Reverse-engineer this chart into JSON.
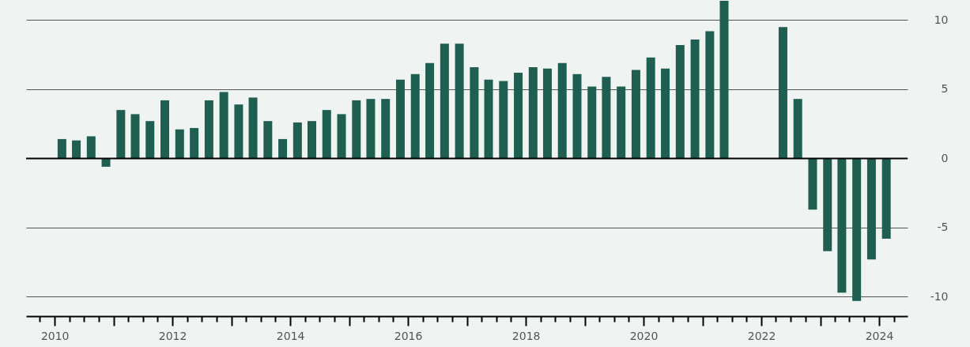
{
  "chart_data": {
    "type": "bar",
    "x": [
      "2010-02-15",
      "2010-05-15",
      "2010-08-15",
      "2010-11-15",
      "2011-02-15",
      "2011-05-15",
      "2011-08-15",
      "2011-11-15",
      "2012-02-15",
      "2012-05-15",
      "2012-08-15",
      "2012-11-15",
      "2013-02-15",
      "2013-05-15",
      "2013-08-15",
      "2013-11-15",
      "2014-02-15",
      "2014-05-15",
      "2014-08-15",
      "2014-11-15",
      "2015-02-15",
      "2015-05-15",
      "2015-08-15",
      "2015-11-15",
      "2016-02-15",
      "2016-05-15",
      "2016-08-15",
      "2016-11-15",
      "2017-02-15",
      "2017-05-15",
      "2017-08-15",
      "2017-11-15",
      "2018-02-15",
      "2018-05-15",
      "2018-08-15",
      "2018-11-15",
      "2019-02-15",
      "2019-05-15",
      "2019-08-15",
      "2019-11-15",
      "2020-02-15",
      "2020-05-15",
      "2020-08-15",
      "2020-11-15",
      "2021-02-15",
      "2021-05-15",
      "2021-08-15",
      "2021-11-15",
      "2022-02-15",
      "2022-05-15",
      "2022-08-15",
      "2022-11-15",
      "2023-02-15",
      "2023-05-15",
      "2023-08-15",
      "2023-11-15",
      "2024-02-15"
    ],
    "values": [
      1.4,
      1.3,
      1.6,
      -0.6,
      3.5,
      3.2,
      2.7,
      4.2,
      2.1,
      2.2,
      4.2,
      4.8,
      3.9,
      4.4,
      2.7,
      1.4,
      2.6,
      2.7,
      3.5,
      3.2,
      4.2,
      4.3,
      4.3,
      5.7,
      6.1,
      6.9,
      8.3,
      8.3,
      6.6,
      5.7,
      5.6,
      6.2,
      6.6,
      6.5,
      6.9,
      6.1,
      5.2,
      5.9,
      5.2,
      6.4,
      7.3,
      6.5,
      8.2,
      8.6,
      9.2,
      11.4,
      null,
      null,
      null,
      9.5,
      4.3,
      -3.7,
      -6.7,
      -9.7,
      -10.3,
      -7.3,
      -5.8
    ],
    "color": "#1f5f52",
    "xlim": [
      "2009-08",
      "2024-06"
    ],
    "xticks": [
      {
        "value": "2009-10",
        "label": null
      },
      {
        "value": "2010",
        "label": "2010"
      },
      {
        "value": "2010-04",
        "label": null
      },
      {
        "value": "2010-07",
        "label": null
      },
      {
        "value": "2010-10",
        "label": null
      },
      {
        "value": "2011",
        "label": null
      },
      {
        "value": "2011-04",
        "label": null
      },
      {
        "value": "2011-07",
        "label": null
      },
      {
        "value": "2011-10",
        "label": null
      },
      {
        "value": "2012",
        "label": "2012"
      },
      {
        "value": "2012-04",
        "label": null
      },
      {
        "value": "2012-07",
        "label": null
      },
      {
        "value": "2012-10",
        "label": null
      },
      {
        "value": "2013",
        "label": null
      },
      {
        "value": "2013-04",
        "label": null
      },
      {
        "value": "2013-07",
        "label": null
      },
      {
        "value": "2013-10",
        "label": null
      },
      {
        "value": "2014",
        "label": "2014"
      },
      {
        "value": "2014-04",
        "label": null
      },
      {
        "value": "2014-07",
        "label": null
      },
      {
        "value": "2014-10",
        "label": null
      },
      {
        "value": "2015",
        "label": null
      },
      {
        "value": "2015-04",
        "label": null
      },
      {
        "value": "2015-07",
        "label": null
      },
      {
        "value": "2015-10",
        "label": null
      },
      {
        "value": "2016",
        "label": "2016"
      },
      {
        "value": "2016-04",
        "label": null
      },
      {
        "value": "2016-07",
        "label": null
      },
      {
        "value": "2016-10",
        "label": null
      },
      {
        "value": "2017",
        "label": null
      },
      {
        "value": "2017-04",
        "label": null
      },
      {
        "value": "2017-07",
        "label": null
      },
      {
        "value": "2017-10",
        "label": null
      },
      {
        "value": "2018",
        "label": "2018"
      },
      {
        "value": "2018-04",
        "label": null
      },
      {
        "value": "2018-07",
        "label": null
      },
      {
        "value": "2018-10",
        "label": null
      },
      {
        "value": "2019",
        "label": null
      },
      {
        "value": "2019-04",
        "label": null
      },
      {
        "value": "2019-07",
        "label": null
      },
      {
        "value": "2019-10",
        "label": null
      },
      {
        "value": "2020",
        "label": "2020"
      },
      {
        "value": "2020-04",
        "label": null
      },
      {
        "value": "2020-07",
        "label": null
      },
      {
        "value": "2020-10",
        "label": null
      },
      {
        "value": "2021",
        "label": null
      },
      {
        "value": "2021-04",
        "label": null
      },
      {
        "value": "2021-07",
        "label": null
      },
      {
        "value": "2021-10",
        "label": null
      },
      {
        "value": "2022",
        "label": "2022"
      },
      {
        "value": "2022-04",
        "label": null
      },
      {
        "value": "2022-07",
        "label": null
      },
      {
        "value": "2022-10",
        "label": null
      },
      {
        "value": "2023",
        "label": null
      },
      {
        "value": "2023-04",
        "label": null
      },
      {
        "value": "2023-07",
        "label": null
      },
      {
        "value": "2023-10",
        "label": null
      },
      {
        "value": "2024",
        "label": "2024"
      },
      {
        "value": "2024-04",
        "label": null
      }
    ],
    "ylim": [
      -11.4,
      11.45
    ],
    "yticks": [
      -10,
      -5,
      0,
      5,
      10
    ],
    "grid": "y",
    "ref_lines": [
      {
        "axis": "y",
        "value": 0,
        "color": "#000000"
      }
    ]
  }
}
